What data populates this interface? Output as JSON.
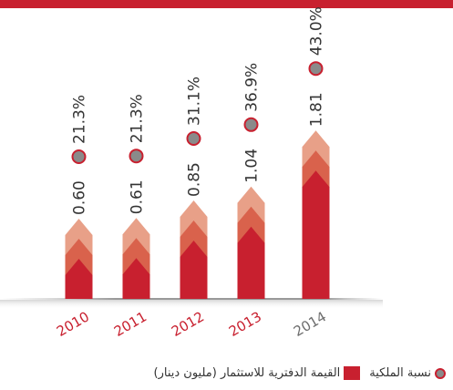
{
  "chart_data": {
    "type": "chevron_bar",
    "categories": [
      "2010",
      "2011",
      "2012",
      "2013",
      "2014"
    ],
    "category_colors": [
      "#c8202f",
      "#c8202f",
      "#c8202f",
      "#c8202f",
      "#6d6d6d"
    ],
    "series": [
      {
        "name": "القيمة الدفترية للاستثمار (مليون دينار)",
        "color": "#c8202f",
        "values": [
          0.6,
          0.61,
          0.85,
          1.04,
          1.81
        ],
        "value_labels": [
          "0.60",
          "0.61",
          "0.85",
          "1.04",
          "1.81"
        ]
      },
      {
        "name": "نسبة الملكية",
        "color": "#8a8a8a",
        "values": [
          21.3,
          21.3,
          31.1,
          36.9,
          43.0
        ],
        "value_labels": [
          "21.3%",
          "21.3%",
          "31.1%",
          "36.9%",
          "43.0%"
        ]
      }
    ],
    "ylim": [
      -0.5,
      2.0
    ]
  }
}
